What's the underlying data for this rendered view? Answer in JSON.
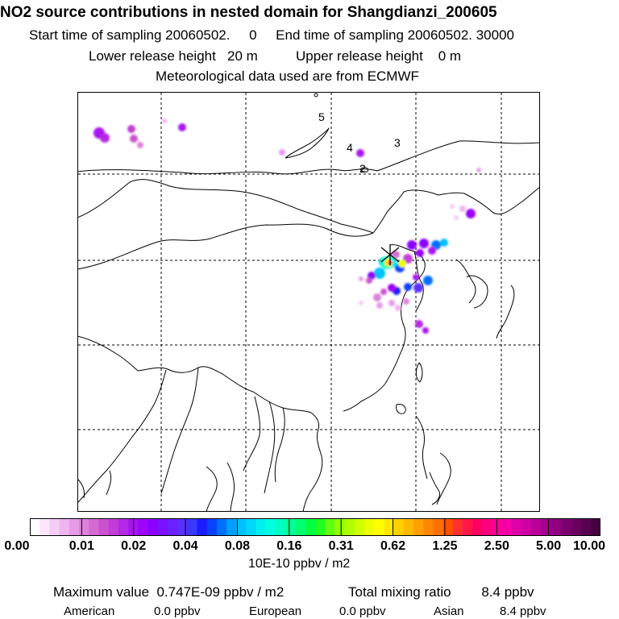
{
  "header": {
    "title": "NO2 source contributions in nested domain for Shangdianzi_200605",
    "sampling": "Start time of sampling 20060502.     0     End time of sampling 20060502. 30000",
    "release": "Lower release height   20 m          Upper release height    0 m",
    "met": "Meteorological data used are from ECMWF"
  },
  "map": {
    "station_marker": "x-star-icon",
    "labels": [
      "5",
      "4",
      "3",
      "2"
    ]
  },
  "legend": {
    "tick_labels": [
      "0.00",
      "0.01",
      "0.02",
      "0.04",
      "0.08",
      "0.16",
      "0.31",
      "0.62",
      "1.25",
      "2.50",
      "5.00",
      "10.00"
    ],
    "unit": "10E-10 ppbv / m2",
    "colors": [
      "#ffffff",
      "#fbe6fb",
      "#f4cdf4",
      "#eeb4ee",
      "#e69be6",
      "#dd82dd",
      "#d46ad4",
      "#cb52cf",
      "#c33cd8",
      "#b528e4",
      "#a815f0",
      "#9a06f7",
      "#8a00ff",
      "#7a10ff",
      "#6a20ff",
      "#5a30ff",
      "#3838ff",
      "#1c1cff",
      "#0a40ff",
      "#0070ff",
      "#00a0ff",
      "#00c0ff",
      "#00d8f8",
      "#00f0f0",
      "#00ffe0",
      "#00ffc0",
      "#00ff98",
      "#00ff70",
      "#00ff40",
      "#20ff20",
      "#60ff10",
      "#90ff00",
      "#b0ff00",
      "#d0ff00",
      "#eeff00",
      "#ffff00",
      "#ffe800",
      "#ffd000",
      "#ffb800",
      "#ffa000",
      "#ff8800",
      "#ff7000",
      "#ff5000",
      "#ff3030",
      "#ff1848",
      "#ff0060",
      "#ff0080",
      "#ff0098",
      "#f500a8",
      "#e000a8",
      "#cc00a4",
      "#b80098",
      "#a4008c",
      "#900080",
      "#7c0070",
      "#6a0060",
      "#580050",
      "#460040"
    ]
  },
  "summary": {
    "maximum": "Maximum value  0.747E-09 ppbv / m2",
    "total": "Total mixing ratio        8.4 ppbv",
    "sources": [
      {
        "name": "American",
        "value": "0.0 ppbv"
      },
      {
        "name": "European",
        "value": "0.0 ppbv"
      },
      {
        "name": "Asian",
        "value": "8.4 ppbv"
      }
    ]
  }
}
